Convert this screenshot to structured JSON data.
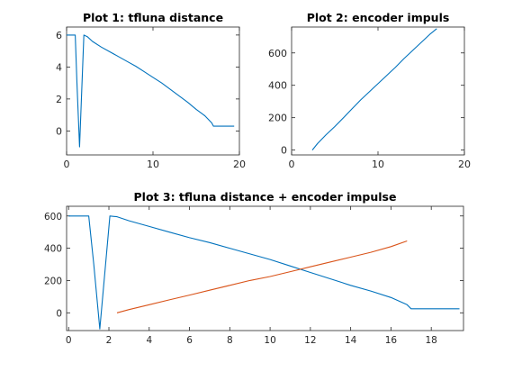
{
  "chart_data": [
    {
      "type": "line",
      "title": "Plot 1: tfluna distance",
      "xlim": [
        0,
        20
      ],
      "ylim": [
        -1.5,
        6.5
      ],
      "xticks": [
        0,
        10,
        20
      ],
      "yticks": [
        0,
        2,
        4,
        6
      ],
      "grid": false,
      "series": [
        {
          "color": "#0072BD",
          "x": [
            0,
            1.0,
            1.2,
            1.5,
            1.75,
            2.0,
            2.4,
            3,
            4,
            5,
            6,
            7,
            8,
            9,
            10,
            11,
            12,
            13,
            14,
            15,
            16,
            16.8,
            17,
            18,
            19,
            19.4
          ],
          "y": [
            6,
            6,
            3.0,
            -1.0,
            2.5,
            6.0,
            5.9,
            5.6,
            5.25,
            4.95,
            4.65,
            4.35,
            4.05,
            3.7,
            3.35,
            3.0,
            2.6,
            2.2,
            1.8,
            1.35,
            0.95,
            0.5,
            0.3,
            0.3,
            0.3,
            0.3
          ]
        }
      ]
    },
    {
      "type": "line",
      "title": "Plot 2: encoder impuls",
      "xlim": [
        0,
        20
      ],
      "ylim": [
        -30,
        760
      ],
      "xticks": [
        0,
        10,
        20
      ],
      "yticks": [
        0,
        200,
        400,
        600
      ],
      "grid": false,
      "series": [
        {
          "color": "#0072BD",
          "x": [
            2.4,
            3,
            4,
            5,
            6,
            7,
            8,
            9,
            10,
            11,
            12,
            13,
            14,
            15,
            16,
            16.8
          ],
          "y": [
            0,
            40,
            95,
            145,
            200,
            255,
            310,
            360,
            410,
            460,
            510,
            565,
            615,
            665,
            715,
            750
          ]
        }
      ]
    },
    {
      "type": "line",
      "title": "Plot 3: tfluna distance + encoder impulse",
      "xlim": [
        -0.1,
        19.6
      ],
      "ylim": [
        -110,
        660
      ],
      "xticks": [
        0,
        2,
        4,
        6,
        8,
        10,
        12,
        14,
        16,
        18
      ],
      "yticks": [
        0,
        200,
        400,
        600
      ],
      "grid": false,
      "series": [
        {
          "color": "#0072BD",
          "x": [
            0,
            1.0,
            1.25,
            1.55,
            1.8,
            2.05,
            2.4,
            3,
            4,
            5,
            6,
            7,
            8,
            9,
            10,
            11,
            12,
            13,
            14,
            15,
            16,
            16.8,
            17,
            18,
            19,
            19.4
          ],
          "y": [
            600,
            600,
            300,
            -100,
            250,
            600,
            595,
            570,
            535,
            500,
            465,
            435,
            400,
            365,
            330,
            290,
            250,
            210,
            170,
            135,
            95,
            50,
            25,
            25,
            25,
            25
          ]
        },
        {
          "color": "#D95319",
          "x": [
            2.4,
            3,
            4,
            5,
            6,
            7,
            8,
            9,
            10,
            11,
            12,
            13,
            14,
            15,
            16,
            16.8
          ],
          "y": [
            0,
            20,
            50,
            80,
            110,
            140,
            170,
            200,
            225,
            255,
            285,
            315,
            345,
            375,
            410,
            445
          ]
        }
      ]
    }
  ]
}
